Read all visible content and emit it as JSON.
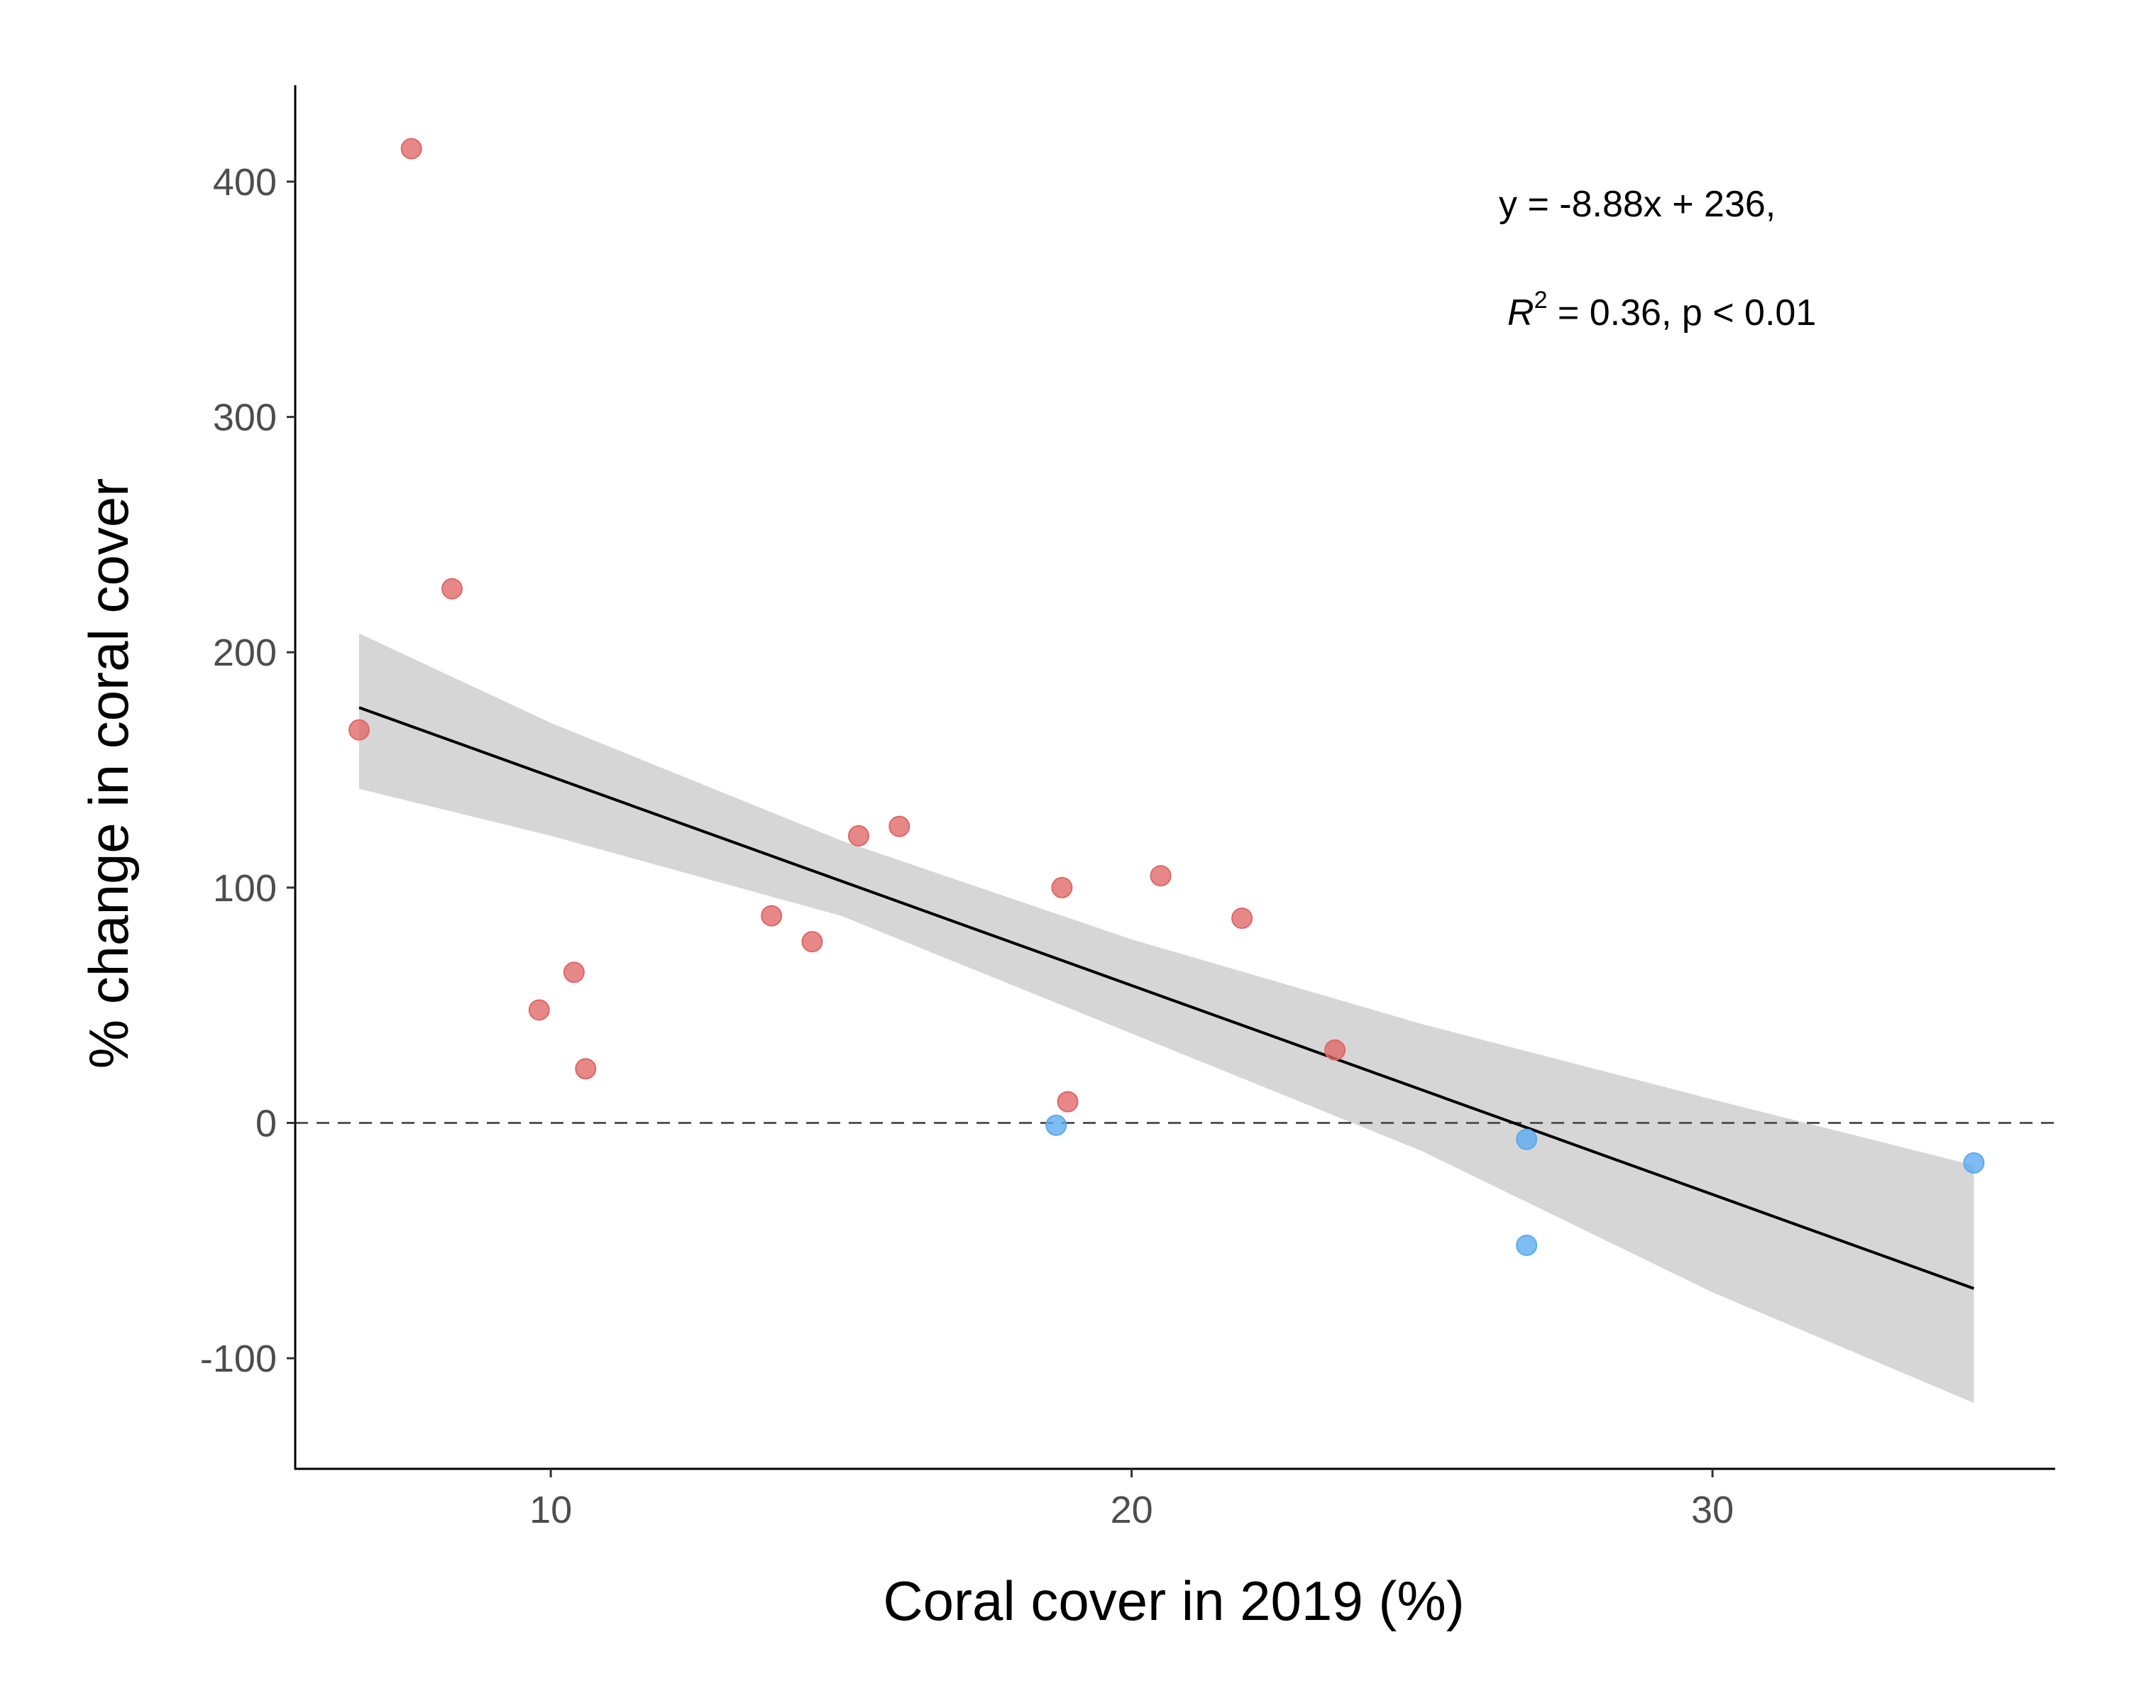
{
  "chart_data": {
    "type": "scatter",
    "title": "",
    "xlabel": "Coral cover in 2019 (%)",
    "ylabel": "% change in coral cover",
    "xlim": [
      5.6,
      35.9
    ],
    "ylim": [
      -147,
      441
    ],
    "x_ticks": [
      10,
      20,
      30
    ],
    "y_ticks": [
      -100,
      0,
      100,
      200,
      300,
      400
    ],
    "x_tick_labels": [
      "10",
      "20",
      "30"
    ],
    "y_tick_labels": [
      "-100",
      "0",
      "100",
      "200",
      "300",
      "400"
    ],
    "grid": false,
    "legend": "none",
    "reference_line": {
      "y": 0,
      "style": "dashed",
      "color": "#555555"
    },
    "series": [
      {
        "color": "#e06666",
        "points": [
          {
            "x": 6.7,
            "y": 167
          },
          {
            "x": 7.6,
            "y": 414
          },
          {
            "x": 8.3,
            "y": 227
          },
          {
            "x": 9.8,
            "y": 48
          },
          {
            "x": 10.4,
            "y": 64
          },
          {
            "x": 10.6,
            "y": 23
          },
          {
            "x": 13.8,
            "y": 88
          },
          {
            "x": 14.5,
            "y": 77
          },
          {
            "x": 15.3,
            "y": 122
          },
          {
            "x": 16.0,
            "y": 126
          },
          {
            "x": 18.8,
            "y": 100
          },
          {
            "x": 18.9,
            "y": 9
          },
          {
            "x": 20.5,
            "y": 105
          },
          {
            "x": 21.9,
            "y": 87
          },
          {
            "x": 23.5,
            "y": 31
          }
        ]
      },
      {
        "color": "#5aaaf0",
        "points": [
          {
            "x": 18.7,
            "y": -1
          },
          {
            "x": 26.8,
            "y": -7
          },
          {
            "x": 26.8,
            "y": -52
          },
          {
            "x": 34.5,
            "y": -17
          }
        ]
      }
    ],
    "regression": {
      "slope": -8.88,
      "intercept": 236,
      "x_range": [
        6.7,
        34.5
      ],
      "line_color": "#000000",
      "band_color": "#d6d6d6",
      "band": [
        {
          "x": 6.7,
          "lower": 142,
          "upper": 208
        },
        {
          "x": 10,
          "lower": 122,
          "upper": 170
        },
        {
          "x": 15,
          "lower": 88,
          "upper": 120
        },
        {
          "x": 20,
          "lower": 38,
          "upper": 78
        },
        {
          "x": 25,
          "lower": -12,
          "upper": 42
        },
        {
          "x": 30,
          "lower": -72,
          "upper": 10
        },
        {
          "x": 34.5,
          "lower": -119,
          "upper": -18
        }
      ]
    },
    "annotations": {
      "equation": "y = -8.88x + 236,",
      "r2_symbol": "R",
      "r2_exponent": "2",
      "r2_rest": " = 0.36, p < 0.01"
    }
  }
}
